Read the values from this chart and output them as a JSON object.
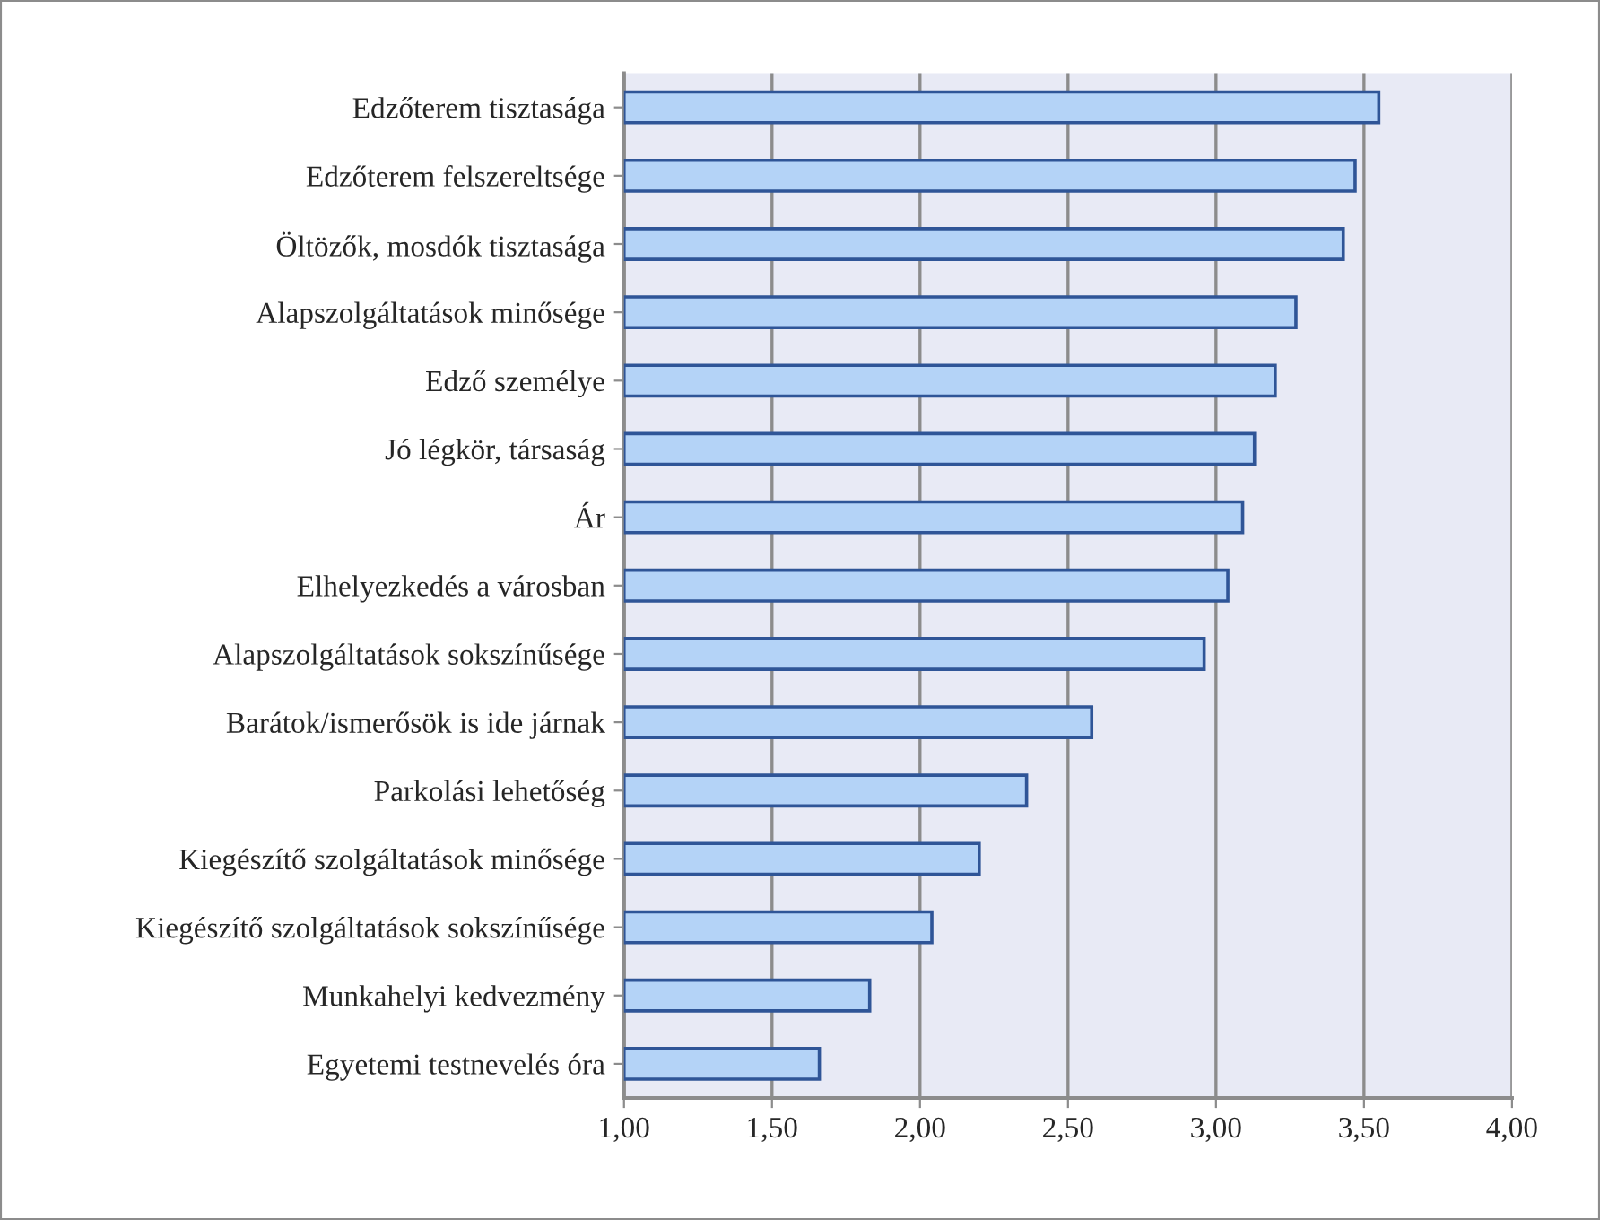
{
  "chart_data": {
    "type": "bar",
    "orientation": "horizontal",
    "categories": [
      "Edzőterem tisztasága",
      "Edzőterem felszereltsége",
      "Öltözők, mosdók tisztasága",
      "Alapszolgáltatások minősége",
      "Edző személye",
      "Jó légkör, társaság",
      "Ár",
      "Elhelyezkedés a városban",
      "Alapszolgáltatások sokszínűsége",
      "Barátok/ismerősök is ide járnak",
      "Parkolási lehetőség",
      "Kiegészítő szolgáltatások minősége",
      "Kiegészítő szolgáltatások sokszínűsége",
      "Munkahelyi kedvezmény",
      "Egyetemi testnevelés óra"
    ],
    "values": [
      3.55,
      3.47,
      3.43,
      3.27,
      3.2,
      3.13,
      3.09,
      3.04,
      2.96,
      2.58,
      2.36,
      2.2,
      2.04,
      1.83,
      1.66
    ],
    "color": "#b4d3f7",
    "xlim": [
      1,
      4
    ],
    "xticks": [
      {
        "value": 1,
        "label": "1,00"
      },
      {
        "value": 1.5,
        "label": "1,50"
      },
      {
        "value": 2,
        "label": "2,00"
      },
      {
        "value": 2.5,
        "label": "2,50"
      },
      {
        "value": 3,
        "label": "3,00"
      },
      {
        "value": 3.5,
        "label": "3,50"
      },
      {
        "value": 4,
        "label": "4,00"
      }
    ],
    "grid": "x"
  }
}
